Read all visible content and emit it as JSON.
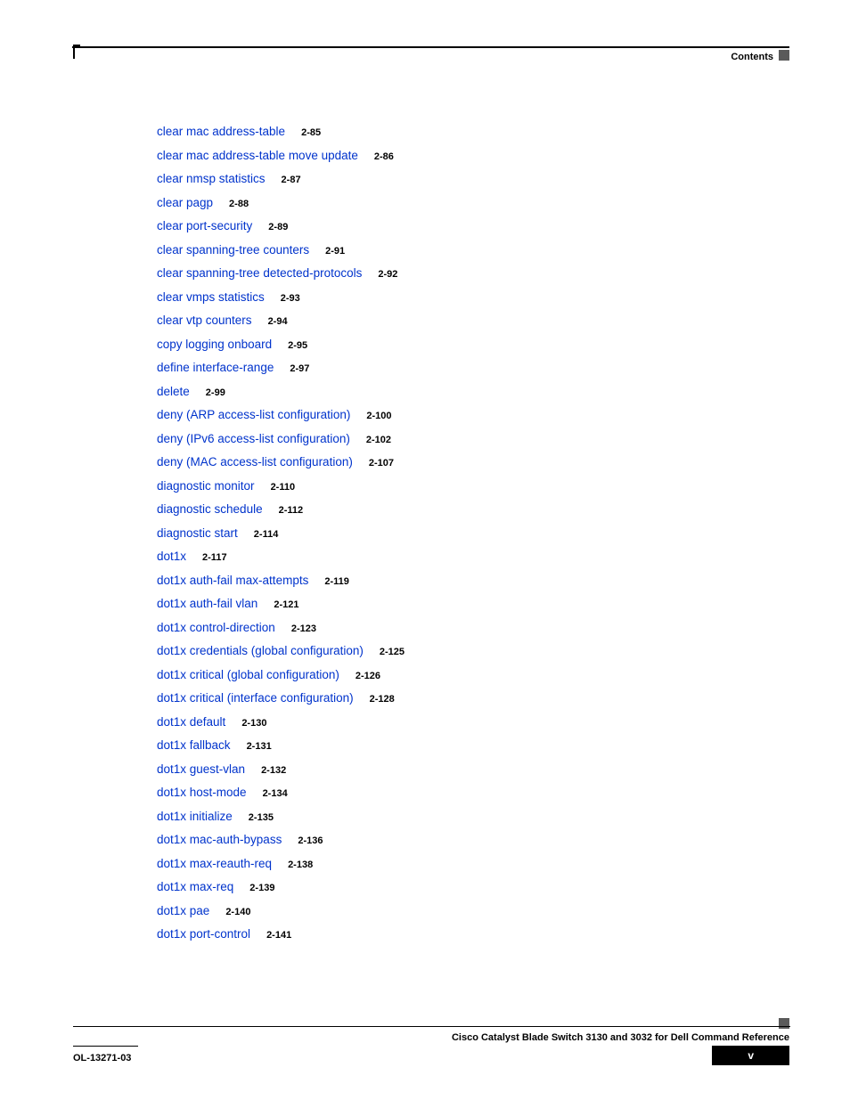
{
  "header": {
    "label": "Contents"
  },
  "entries": [
    {
      "title": "clear mac address-table",
      "page": "2-85"
    },
    {
      "title": "clear mac address-table move update",
      "page": "2-86"
    },
    {
      "title": "clear nmsp statistics",
      "page": "2-87"
    },
    {
      "title": "clear pagp",
      "page": "2-88"
    },
    {
      "title": "clear port-security",
      "page": "2-89"
    },
    {
      "title": "clear spanning-tree counters",
      "page": "2-91"
    },
    {
      "title": "clear spanning-tree detected-protocols",
      "page": "2-92"
    },
    {
      "title": "clear vmps statistics",
      "page": "2-93"
    },
    {
      "title": "clear vtp counters",
      "page": "2-94"
    },
    {
      "title": "copy logging onboard",
      "page": "2-95"
    },
    {
      "title": "define interface-range",
      "page": "2-97"
    },
    {
      "title": "delete",
      "page": "2-99"
    },
    {
      "title": "deny (ARP access-list configuration)",
      "page": "2-100"
    },
    {
      "title": "deny (IPv6 access-list configuration)",
      "page": "2-102"
    },
    {
      "title": "deny (MAC access-list configuration)",
      "page": "2-107"
    },
    {
      "title": "diagnostic monitor",
      "page": "2-110"
    },
    {
      "title": "diagnostic schedule",
      "page": "2-112"
    },
    {
      "title": "diagnostic start",
      "page": "2-114"
    },
    {
      "title": "dot1x",
      "page": "2-117"
    },
    {
      "title": "dot1x auth-fail max-attempts",
      "page": "2-119"
    },
    {
      "title": "dot1x auth-fail vlan",
      "page": "2-121"
    },
    {
      "title": "dot1x control-direction",
      "page": "2-123"
    },
    {
      "title": "dot1x credentials (global configuration)",
      "page": "2-125"
    },
    {
      "title": "dot1x critical (global configuration)",
      "page": "2-126"
    },
    {
      "title": "dot1x critical (interface configuration)",
      "page": "2-128"
    },
    {
      "title": "dot1x default",
      "page": "2-130"
    },
    {
      "title": "dot1x fallback",
      "page": "2-131"
    },
    {
      "title": "dot1x guest-vlan",
      "page": "2-132"
    },
    {
      "title": "dot1x host-mode",
      "page": "2-134"
    },
    {
      "title": "dot1x initialize",
      "page": "2-135"
    },
    {
      "title": "dot1x mac-auth-bypass",
      "page": "2-136"
    },
    {
      "title": "dot1x max-reauth-req",
      "page": "2-138"
    },
    {
      "title": "dot1x max-req",
      "page": "2-139"
    },
    {
      "title": "dot1x pae",
      "page": "2-140"
    },
    {
      "title": "dot1x port-control",
      "page": "2-141"
    }
  ],
  "footer": {
    "title": "Cisco Catalyst Blade Switch 3130 and 3032 for Dell Command Reference",
    "doc_id": "OL-13271-03",
    "page_num": "v"
  }
}
